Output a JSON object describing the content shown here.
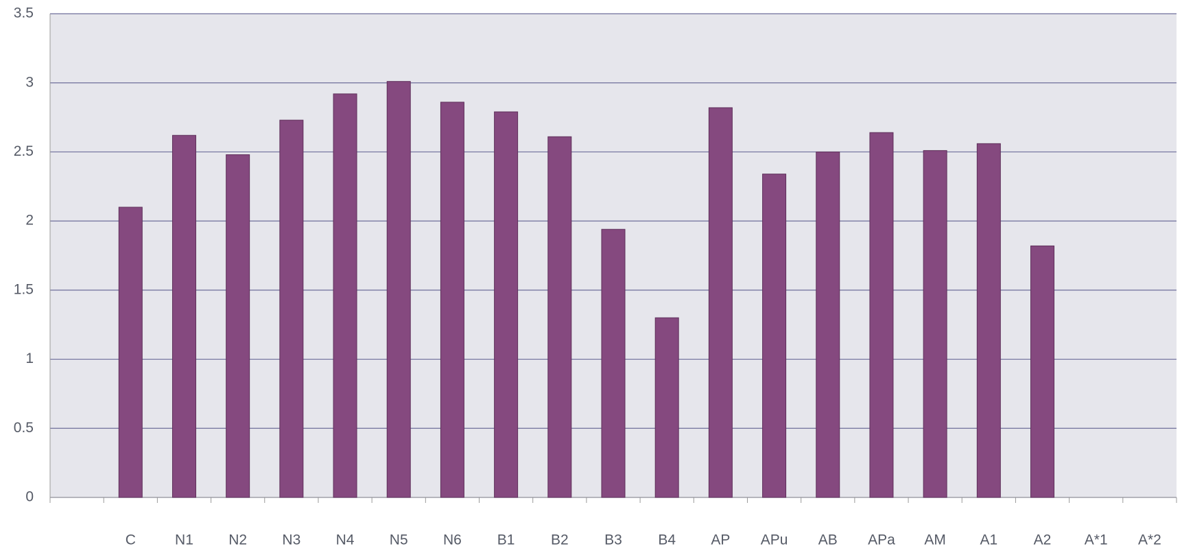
{
  "chart_data": {
    "type": "bar",
    "categories": [
      null,
      "C",
      "N1",
      "N2",
      "N3",
      "N4",
      "N5",
      "N6",
      "B1",
      "B2",
      "B3",
      "B4",
      "AP",
      "APu",
      "AB",
      "APa",
      "AM",
      "A1",
      "A2",
      "A*1",
      "A*2"
    ],
    "values": [
      null,
      2.1,
      2.62,
      2.48,
      2.73,
      2.92,
      3.01,
      2.86,
      2.79,
      2.61,
      1.94,
      1.3,
      2.82,
      2.34,
      2.5,
      2.64,
      2.51,
      2.56,
      1.82,
      null,
      null
    ],
    "color": "#85497f",
    "ylim": [
      0,
      3.5
    ],
    "yticks": [
      0,
      0.5,
      1,
      1.5,
      2,
      2.5,
      3,
      3.5
    ],
    "grid": true
  }
}
